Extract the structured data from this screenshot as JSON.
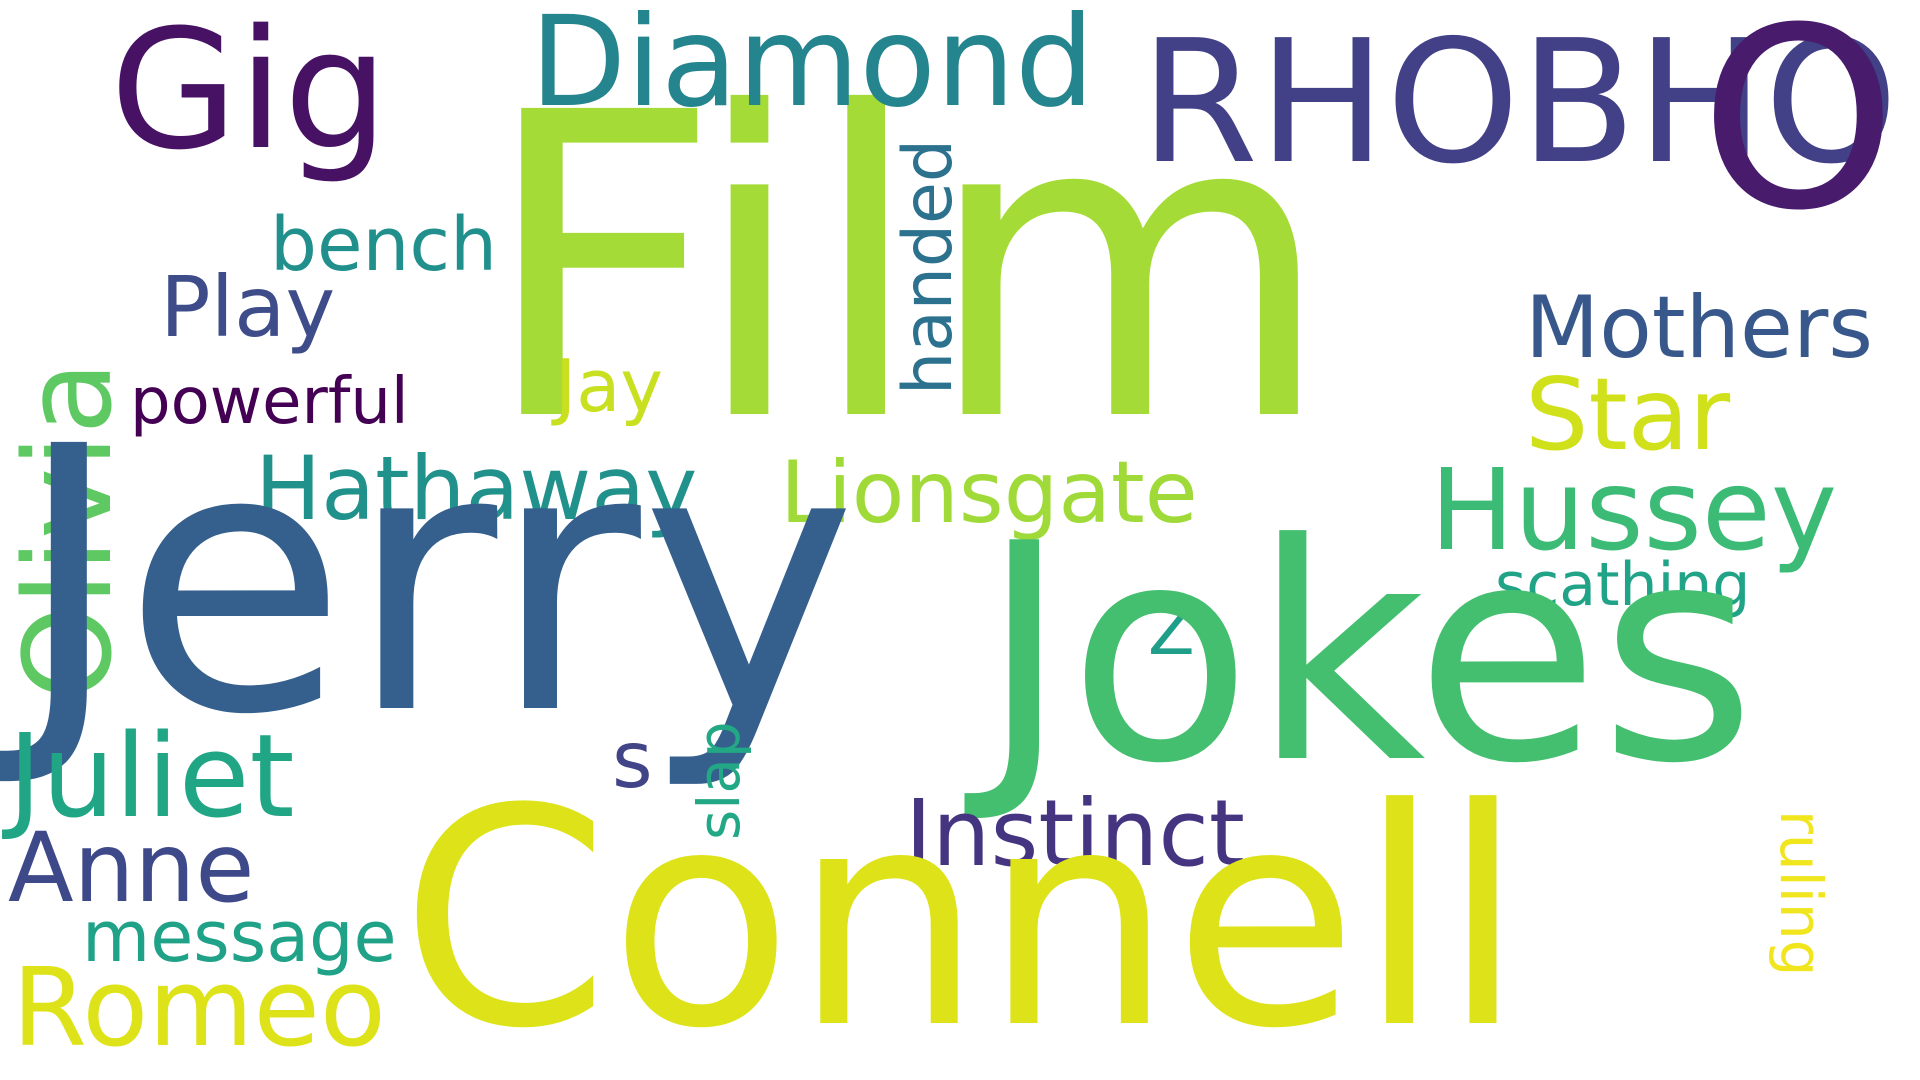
{
  "background_color": "#ffffff",
  "words": {
    "film": "Film",
    "jerry": "Jerry",
    "jokes": "Jokes",
    "connell": "Connell",
    "o": "O",
    "rhobho": "RHOBHO",
    "gig": "Gig",
    "diamond": "Diamond",
    "olivia": "Olivia",
    "hussey": "Hussey",
    "star": "Star",
    "juliet": "Juliet",
    "romeo": "Romeo",
    "anne": "Anne",
    "instinct": "Instinct",
    "hathaway": "Hathaway",
    "lionsgate": "Lionsgate",
    "mothers": "Mothers",
    "handed": "handed",
    "play": "Play",
    "bench": "bench",
    "powerful": "powerful",
    "message": "message",
    "scathing": "scathing",
    "jay": "Jay",
    "slap": "slap",
    "ruling": "ruling",
    "s": "s",
    "z": "Z"
  },
  "colors": {
    "film": "#a5db36",
    "jerry": "#355f8d",
    "jokes": "#44bf70",
    "connell": "#dde318",
    "o": "#481b6d",
    "rhobho": "#424086",
    "gig": "#471164",
    "diamond": "#25858e",
    "olivia": "#5ec962",
    "hussey": "#3bbb75",
    "star": "#d0e11c",
    "juliet": "#21a685",
    "romeo": "#dde318",
    "anne": "#3e4989",
    "instinct": "#453581",
    "hathaway": "#21918c",
    "lionsgate": "#a0da39",
    "mothers": "#38588c",
    "handed": "#2c718e",
    "play": "#3e4c8a",
    "bench": "#21908d",
    "powerful": "#440154",
    "message": "#1fa287",
    "scathing": "#20a386",
    "jay": "#c8e020",
    "slap": "#22a884",
    "ruling": "#f1e51d",
    "s": "#414487",
    "z": "#1f9e89"
  }
}
